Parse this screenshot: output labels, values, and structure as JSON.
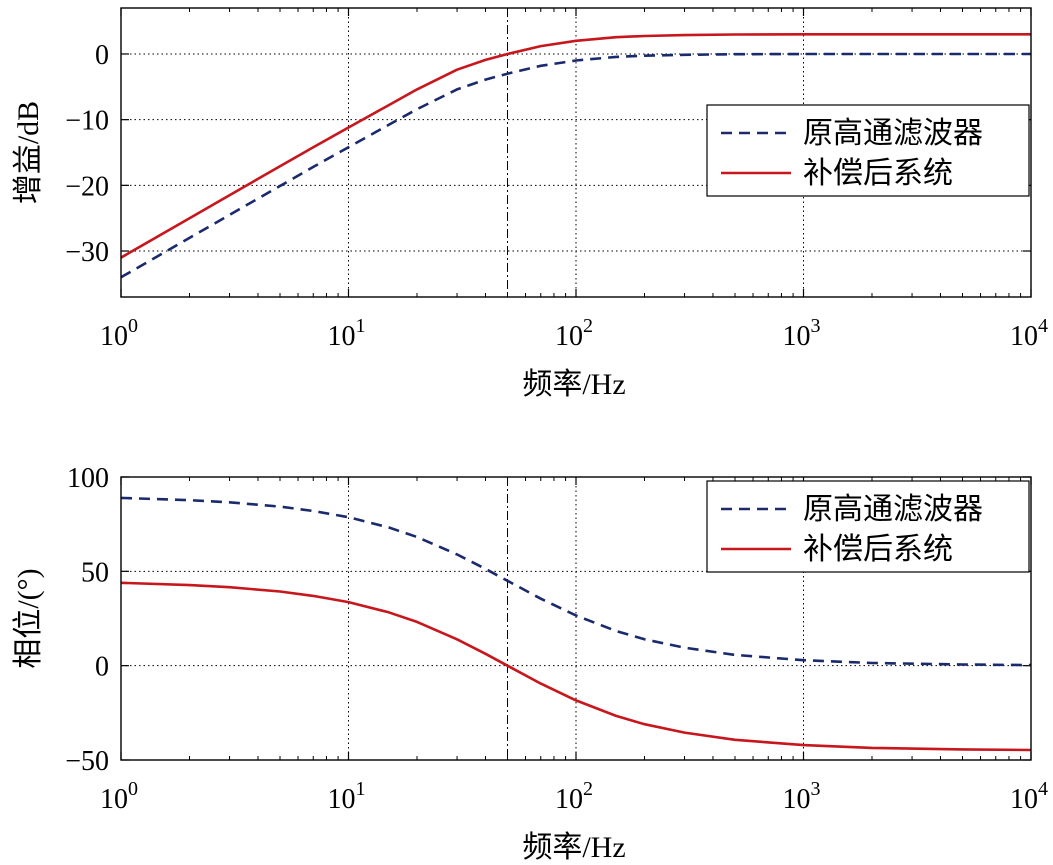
{
  "chart_data": [
    {
      "type": "line",
      "xscale": "log",
      "xlim": [
        1,
        10000
      ],
      "ylim": [
        -37,
        7
      ],
      "xlabel": "频率/Hz",
      "ylabel": "增益/dB",
      "grid": true,
      "legend": "right",
      "yticks": [
        {
          "value": 0,
          "label": "0"
        },
        {
          "value": -10,
          "label": "−10"
        },
        {
          "value": -20,
          "label": "−20"
        },
        {
          "value": -30,
          "label": "−30"
        }
      ],
      "xticks": [
        {
          "value": 1,
          "base": "10",
          "exp": "0"
        },
        {
          "value": 10,
          "base": "10",
          "exp": "1"
        },
        {
          "value": 100,
          "base": "10",
          "exp": "2"
        },
        {
          "value": 1000,
          "base": "10",
          "exp": "3"
        },
        {
          "value": 10000,
          "base": "10",
          "exp": "4"
        }
      ],
      "vline_x": 50,
      "series": [
        {
          "name": "原高通滤波器",
          "style": "dashed",
          "color": "#1a2a6c",
          "x": [
            1,
            2,
            3,
            5,
            7,
            10,
            15,
            20,
            30,
            40,
            50,
            70,
            100,
            150,
            200,
            300,
            500,
            1000,
            2000,
            5000,
            10000
          ],
          "y": [
            -34.0,
            -28.0,
            -24.5,
            -20.1,
            -17.2,
            -14.2,
            -10.8,
            -8.4,
            -5.4,
            -3.9,
            -3.0,
            -1.8,
            -1.0,
            -0.45,
            -0.26,
            -0.12,
            -0.04,
            -0.01,
            0,
            0,
            0
          ]
        },
        {
          "name": "补偿后系统",
          "style": "solid",
          "color": "#c8161d",
          "x": [
            1,
            2,
            3,
            5,
            7,
            10,
            15,
            20,
            30,
            40,
            50,
            70,
            100,
            150,
            200,
            300,
            500,
            1000,
            2000,
            5000,
            10000
          ],
          "y": [
            -31.0,
            -25.0,
            -21.5,
            -17.1,
            -14.2,
            -11.2,
            -7.8,
            -5.4,
            -2.4,
            -0.9,
            0.0,
            1.2,
            2.0,
            2.55,
            2.74,
            2.88,
            2.96,
            2.99,
            3.0,
            3.0,
            3.0
          ]
        }
      ]
    },
    {
      "type": "line",
      "xscale": "log",
      "xlim": [
        1,
        10000
      ],
      "ylim": [
        -50,
        100
      ],
      "xlabel": "频率/Hz",
      "ylabel": "相位/(°)",
      "grid": true,
      "legend": "top-right",
      "yticks": [
        {
          "value": 100,
          "label": "100"
        },
        {
          "value": 50,
          "label": "50"
        },
        {
          "value": 0,
          "label": "0"
        },
        {
          "value": -50,
          "label": "−50"
        }
      ],
      "xticks": [
        {
          "value": 1,
          "base": "10",
          "exp": "0"
        },
        {
          "value": 10,
          "base": "10",
          "exp": "1"
        },
        {
          "value": 100,
          "base": "10",
          "exp": "2"
        },
        {
          "value": 1000,
          "base": "10",
          "exp": "3"
        },
        {
          "value": 10000,
          "base": "10",
          "exp": "4"
        }
      ],
      "vline_x": 50,
      "series": [
        {
          "name": "原高通滤波器",
          "style": "dashed",
          "color": "#1a2a6c",
          "x": [
            1,
            2,
            3,
            5,
            7,
            10,
            15,
            20,
            30,
            40,
            50,
            70,
            100,
            150,
            200,
            300,
            500,
            1000,
            2000,
            5000,
            10000
          ],
          "y": [
            88.9,
            87.7,
            86.6,
            84.3,
            82.0,
            78.7,
            73.3,
            68.2,
            59.0,
            51.3,
            45.0,
            35.5,
            26.6,
            18.4,
            14.0,
            9.5,
            5.7,
            2.9,
            1.4,
            0.6,
            0.3
          ]
        },
        {
          "name": "补偿后系统",
          "style": "solid",
          "color": "#c8161d",
          "x": [
            1,
            2,
            3,
            5,
            7,
            10,
            15,
            20,
            30,
            40,
            50,
            70,
            100,
            150,
            200,
            300,
            500,
            1000,
            2000,
            5000,
            10000
          ],
          "y": [
            43.9,
            42.7,
            41.6,
            39.3,
            37.0,
            33.7,
            28.3,
            23.2,
            14.0,
            6.3,
            0.0,
            -9.5,
            -18.4,
            -26.6,
            -31.0,
            -35.5,
            -39.3,
            -42.1,
            -43.6,
            -44.4,
            -44.7
          ]
        }
      ]
    }
  ]
}
